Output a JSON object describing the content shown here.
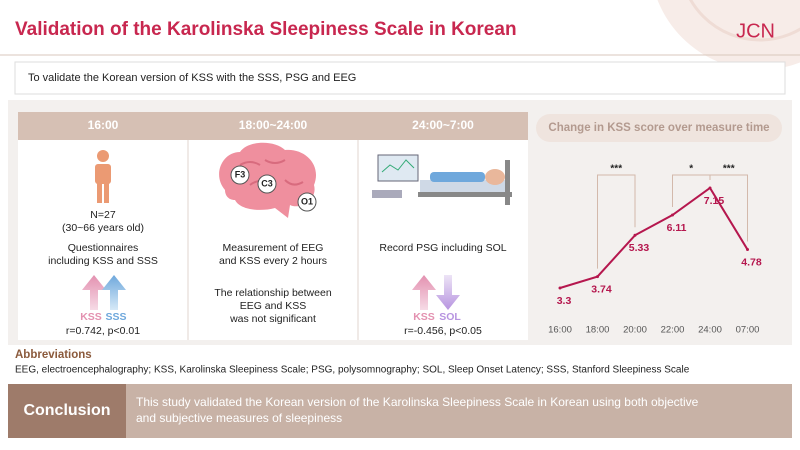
{
  "header": {
    "title": "Validation of the Karolinska Sleepiness Scale in Korean",
    "logo": "JCN"
  },
  "objective": "To validate the Korean version of KSS with the SSS, PSG and EEG",
  "panels": [
    {
      "time": "16:00",
      "sample": "N=27",
      "age": "(30~66 years old)",
      "description": [
        "Questionnaires",
        "including KSS and SSS"
      ],
      "arrow_labels": [
        "KSS",
        "SSS"
      ],
      "result": "r=0.742, p<0.01"
    },
    {
      "time": "18:00~24:00",
      "electrodes": [
        "F3",
        "C3",
        "O1"
      ],
      "description": [
        "Measurement of EEG",
        "and KSS every 2 hours"
      ],
      "note": [
        "The relationship between",
        "EEG and KSS",
        "was not significant"
      ]
    },
    {
      "time": "24:00~7:00",
      "description": [
        "Record PSG including SOL"
      ],
      "arrow_labels": [
        "KSS",
        "SOL"
      ],
      "result": "r=-0.456, p<0.05"
    }
  ],
  "chart_data": {
    "type": "line",
    "title": "Change in KSS score over measure time",
    "categories": [
      "16:00",
      "18:00",
      "20:00",
      "22:00",
      "24:00",
      "07:00"
    ],
    "values": [
      3.3,
      3.74,
      5.33,
      6.11,
      7.15,
      4.78
    ],
    "color": "#b5174e",
    "annotations": [
      {
        "text": "***",
        "between": [
          "18:00",
          "20:00"
        ]
      },
      {
        "text": "*",
        "between": [
          "22:00",
          "24:00"
        ]
      },
      {
        "text": "***",
        "between": [
          "24:00",
          "07:00"
        ]
      }
    ]
  },
  "abbreviations": {
    "title": "Abbreviations",
    "text": "EEG, electroencephalography; KSS, Karolinska Sleepiness Scale; PSG, polysomnography; SOL, Sleep Onset Latency; SSS, Stanford Sleepiness Scale"
  },
  "conclusion": {
    "label": "Conclusion",
    "text": [
      "This study validated the Korean version of the Karolinska Sleepiness Scale in Korean using both objective",
      "and subjective measures of sleepiness"
    ]
  }
}
